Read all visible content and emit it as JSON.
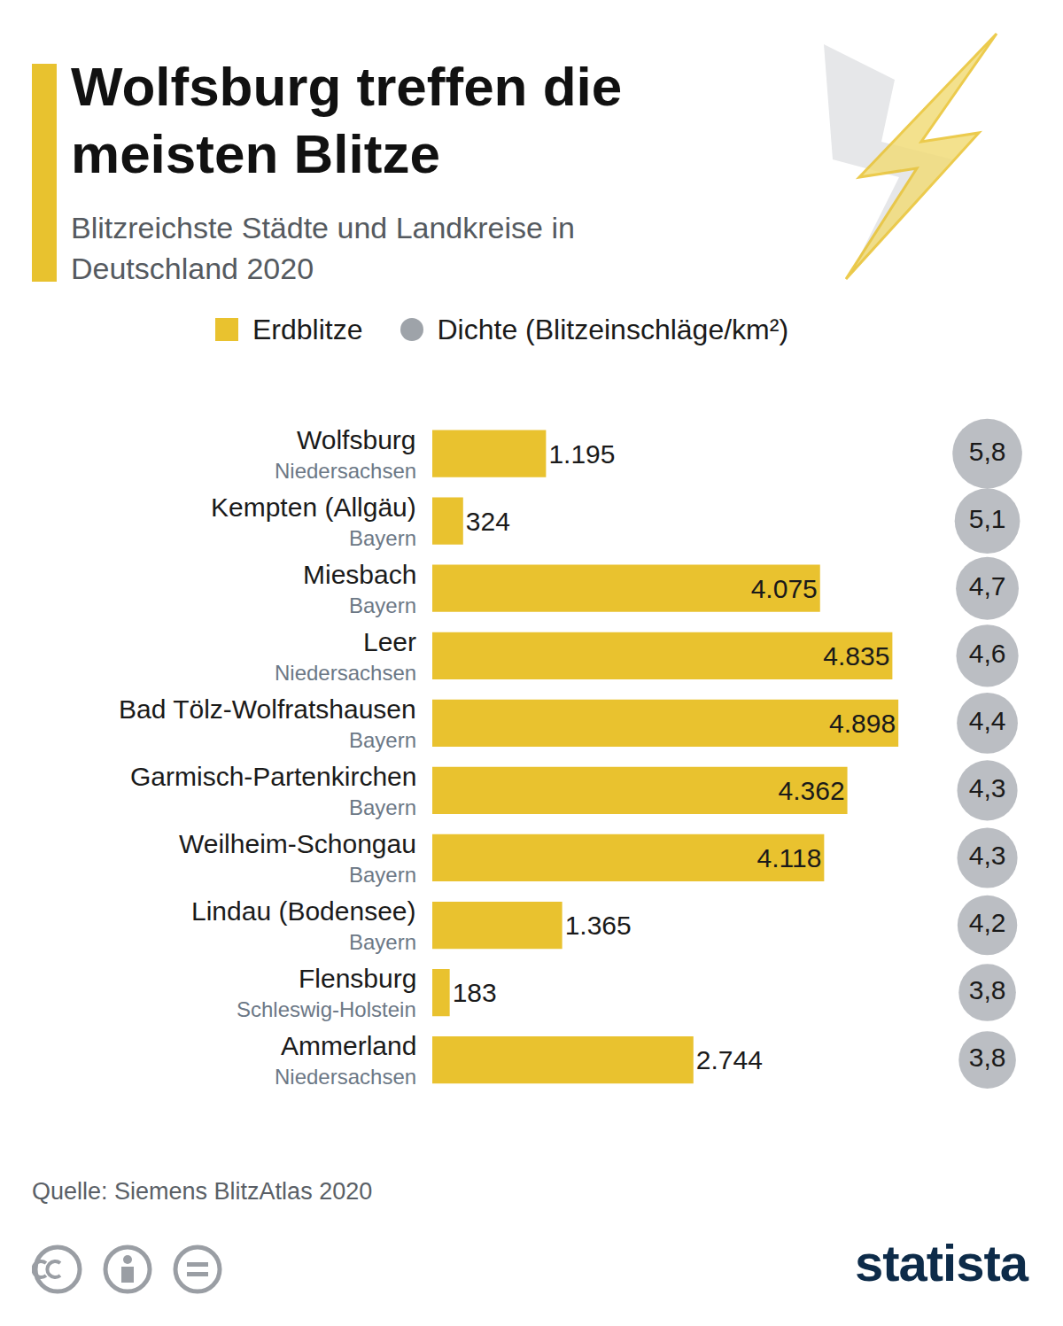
{
  "chart_data": {
    "type": "bar",
    "orientation": "horizontal",
    "title": "Wolfsburg treffen die meisten Blitze",
    "subtitle": "Blitzreichste Städte und Landkreise in Deutschland 2020",
    "source": "Quelle: Siemens BlitzAtlas 2020",
    "branding": "statista",
    "categories": [
      "Wolfsburg",
      "Kempten (Allgäu)",
      "Miesbach",
      "Leer",
      "Bad Tölz-Wolfratshausen",
      "Garmisch-Partenkirchen",
      "Weilheim-Schongau",
      "Lindau (Bodensee)",
      "Flensburg",
      "Ammerland"
    ],
    "category_sublabels": [
      "Niedersachsen",
      "Bayern",
      "Bayern",
      "Niedersachsen",
      "Bayern",
      "Bayern",
      "Bayern",
      "Bayern",
      "Schleswig-Holstein",
      "Niedersachsen"
    ],
    "series": [
      {
        "name": "Erdblitze",
        "type": "bar",
        "color": "#e9c22f",
        "values": [
          1195,
          324,
          4075,
          4835,
          4898,
          4362,
          4118,
          1365,
          183,
          2744
        ],
        "value_labels": [
          "1.195",
          "324",
          "4.075",
          "4.835",
          "4.898",
          "4.362",
          "4.118",
          "1.365",
          "183",
          "2.744"
        ]
      },
      {
        "name": "Dichte (Blitzeinschläge/km²)",
        "type": "scatter",
        "marker": "circle",
        "color": "#9ea3a9",
        "values": [
          5.8,
          5.1,
          4.7,
          4.6,
          4.4,
          4.3,
          4.3,
          4.2,
          3.8,
          3.8
        ],
        "value_labels": [
          "5,8",
          "5,1",
          "4,7",
          "4,6",
          "4,4",
          "4,3",
          "4,3",
          "4,2",
          "3,8",
          "3,8"
        ]
      }
    ],
    "xlim": [
      0,
      5150
    ],
    "tick_labels": false,
    "data_labels": true,
    "legend": "top"
  }
}
